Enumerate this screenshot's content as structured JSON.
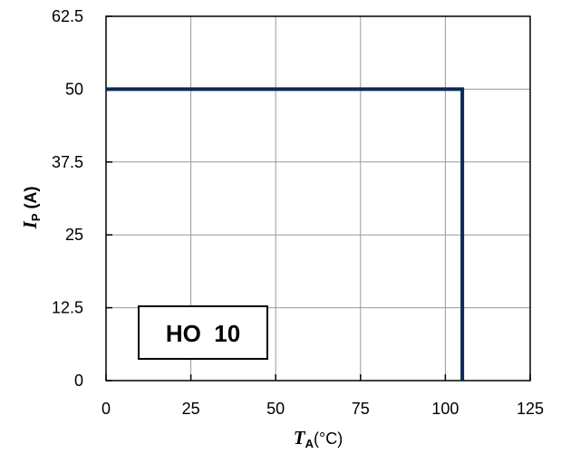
{
  "chart_data": {
    "type": "line",
    "x": [
      0,
      105,
      105
    ],
    "series": [
      {
        "values": [
          50,
          50,
          0
        ],
        "color": "#0b2a5a"
      }
    ],
    "xticks": [
      "0",
      "25",
      "50",
      "75",
      "100",
      "125"
    ],
    "yticks": [
      "0",
      "12.5",
      "25",
      "37.5",
      "50",
      "62.5"
    ],
    "xlim": [
      0,
      125
    ],
    "ylim": [
      0,
      62.5
    ],
    "xgrid": [
      0,
      25,
      50,
      75,
      100,
      125
    ],
    "ygrid": [
      0,
      12.5,
      25,
      37.5,
      50,
      62.5
    ],
    "grid": true,
    "xlabel": {
      "main": "T",
      "sub": "A",
      "unit": "(°C)"
    },
    "ylabel": {
      "main": "I",
      "sub": "P",
      "unit": " (A)"
    },
    "annotation": "HO  10"
  }
}
